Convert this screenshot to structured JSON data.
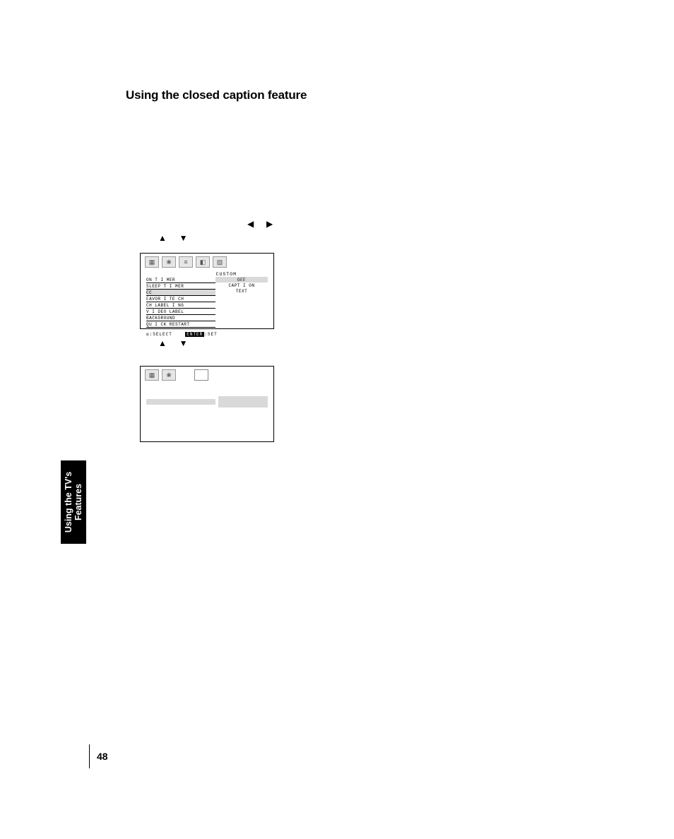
{
  "page": {
    "heading": "Using the closed caption feature",
    "page_number": "48",
    "sidetab_line1": "Using the TV's",
    "sidetab_line2": "Features"
  },
  "glyphs": {
    "tri_left": "◀",
    "tri_right": "▶",
    "tri_up": "▲",
    "tri_down": "▼"
  },
  "osd1": {
    "title": "CUSTOM",
    "menu_items": [
      "ON  T I MER",
      "SLEEP  T I MER",
      "CC",
      "FAVOR I TE  CH",
      "CH  LABEL I NG",
      "V I DEO  LABEL",
      "BACKGROUND",
      "QU I CK  RESTART"
    ],
    "highlight_index": 2,
    "right_items": [
      "OFF",
      "CAPT I ON",
      "TEXT"
    ],
    "right_highlight_index": 0,
    "hint_select": ":SELECT",
    "hint_enter": "ENTER",
    "hint_set": ":SET",
    "icon_glyphs": [
      "▦",
      "❀",
      "≡",
      "◧",
      "▨"
    ]
  },
  "osd2": {
    "icon_glyphs": [
      "▦",
      "❀"
    ],
    "blank_icons": 1
  },
  "colors": {
    "highlight_bg": "#d9d9d9",
    "iconbox_bg": "#e6e6e6"
  }
}
